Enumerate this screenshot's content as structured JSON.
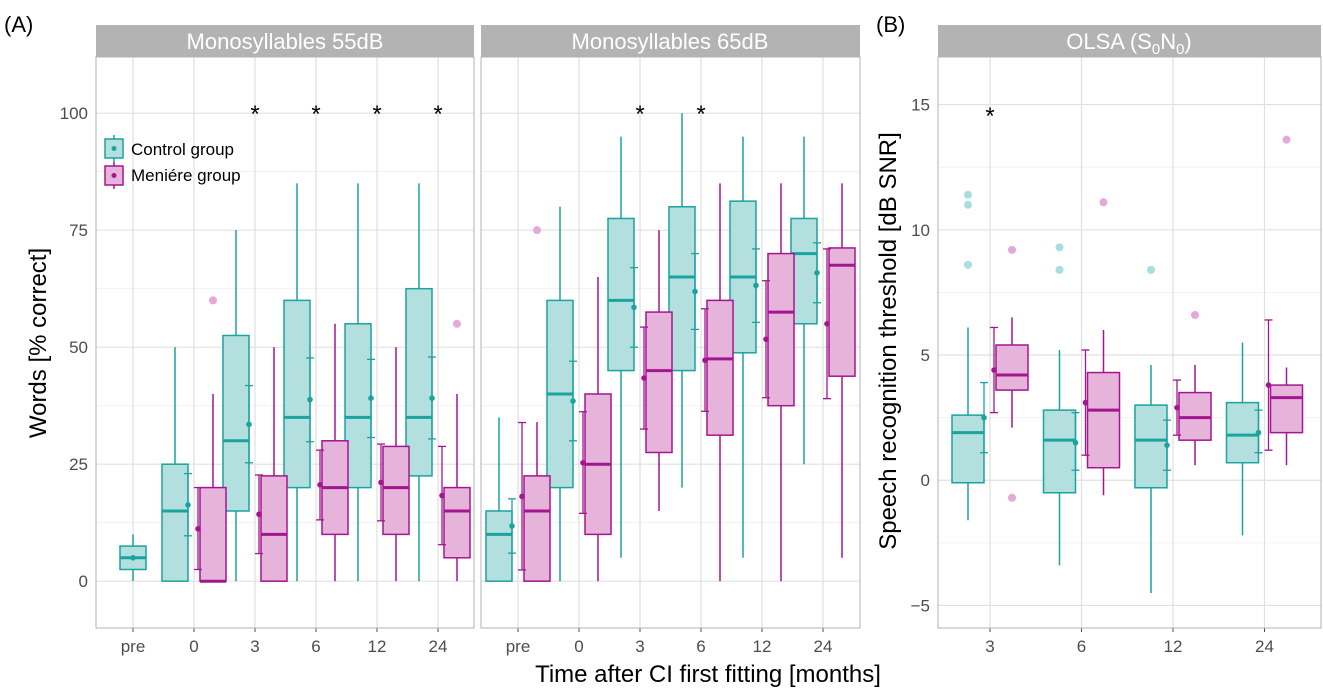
{
  "figure": {
    "panel_a_label": "(A)",
    "panel_b_label": "(B)",
    "shared_xlabel": "Time after CI first fitting [months]"
  },
  "colors": {
    "control": "#1aa39f",
    "control_fill": "#b3e0de",
    "meniere": "#a3168f",
    "meniere_fill": "#e6b3db",
    "strip": "#b3b3b3",
    "grid": "#e0e0e0"
  },
  "legend": {
    "items": [
      "Control group",
      "Meniére group"
    ]
  },
  "chart_data": [
    {
      "type": "box",
      "title": "Monosyllables 55dB",
      "ylabel": "Words [% correct]",
      "xlabel": "Time after CI first fitting [months]",
      "categories": [
        "pre",
        "0",
        "3",
        "6",
        "12",
        "24"
      ],
      "ylim": [
        -10,
        112
      ],
      "yticks": [
        0,
        25,
        50,
        75,
        100
      ],
      "grid": true,
      "legend_position": "top-left",
      "significance": [
        "",
        "",
        "*",
        "*",
        "*",
        "*"
      ],
      "series": [
        {
          "name": "Control group",
          "boxes": [
            {
              "q1": 2.5,
              "median": 5,
              "q3": 7.5,
              "lo": 0,
              "hi": 10,
              "mean": 5,
              "ci": null,
              "outliers": []
            },
            {
              "q1": 0,
              "median": 15,
              "q3": 25,
              "lo": 0,
              "hi": 50,
              "mean": 16.3,
              "ci": [
                9.7,
                23
              ],
              "outliers": []
            },
            {
              "q1": 15,
              "median": 30,
              "q3": 52.5,
              "lo": 0,
              "hi": 75,
              "mean": 33.5,
              "ci": [
                25.3,
                41.8
              ],
              "outliers": []
            },
            {
              "q1": 20,
              "median": 35,
              "q3": 60,
              "lo": 0,
              "hi": 85,
              "mean": 38.8,
              "ci": [
                29.8,
                47.7
              ],
              "outliers": []
            },
            {
              "q1": 20,
              "median": 35,
              "q3": 55,
              "lo": 0,
              "hi": 85,
              "mean": 39.1,
              "ci": [
                30.7,
                47.4
              ],
              "outliers": []
            },
            {
              "q1": 22.5,
              "median": 35,
              "q3": 62.5,
              "lo": 0,
              "hi": 85,
              "mean": 39.1,
              "ci": [
                30.4,
                47.9
              ],
              "outliers": []
            }
          ]
        },
        {
          "name": "Meniére group",
          "boxes": [
            null,
            {
              "q1": 0,
              "median": 0,
              "q3": 20,
              "lo": 0,
              "hi": 40,
              "mean": 11.2,
              "ci": [
                2.5,
                20
              ],
              "outliers": [
                60
              ]
            },
            {
              "q1": 0,
              "median": 10,
              "q3": 22.5,
              "lo": 0,
              "hi": 50,
              "mean": 14.3,
              "ci": [
                5.9,
                22.7
              ],
              "outliers": []
            },
            {
              "q1": 10,
              "median": 20,
              "q3": 30,
              "lo": 0,
              "hi": 55,
              "mean": 20.6,
              "ci": [
                13.1,
                28
              ],
              "outliers": []
            },
            {
              "q1": 10,
              "median": 20,
              "q3": 28.8,
              "lo": 0,
              "hi": 50,
              "mean": 21.1,
              "ci": [
                12.9,
                29.3
              ],
              "outliers": []
            },
            {
              "q1": 5,
              "median": 15,
              "q3": 20,
              "lo": 0,
              "hi": 40,
              "mean": 18.3,
              "ci": [
                7.8,
                28.8
              ],
              "outliers": [
                55
              ]
            }
          ]
        }
      ]
    },
    {
      "type": "box",
      "title": "Monosyllables 65dB",
      "categories": [
        "pre",
        "0",
        "3",
        "6",
        "12",
        "24"
      ],
      "ylim": [
        -10,
        112
      ],
      "grid": true,
      "significance": [
        "",
        "",
        "*",
        "*",
        "",
        ""
      ],
      "series": [
        {
          "name": "Control group",
          "boxes": [
            {
              "q1": 0,
              "median": 10,
              "q3": 15,
              "lo": 0,
              "hi": 35,
              "mean": 11.8,
              "ci": [
                6,
                17.6
              ],
              "outliers": []
            },
            {
              "q1": 20,
              "median": 40,
              "q3": 60,
              "lo": 0,
              "hi": 80,
              "mean": 38.5,
              "ci": [
                30,
                47
              ],
              "outliers": []
            },
            {
              "q1": 45,
              "median": 60,
              "q3": 77.5,
              "lo": 5,
              "hi": 95,
              "mean": 58.5,
              "ci": [
                50,
                67
              ],
              "outliers": []
            },
            {
              "q1": 45,
              "median": 65,
              "q3": 80,
              "lo": 20,
              "hi": 100,
              "mean": 61.9,
              "ci": [
                53.8,
                70
              ],
              "outliers": []
            },
            {
              "q1": 48.8,
              "median": 65,
              "q3": 81.2,
              "lo": 5,
              "hi": 95,
              "mean": 63.2,
              "ci": [
                55.3,
                71
              ],
              "outliers": []
            },
            {
              "q1": 55,
              "median": 70,
              "q3": 77.5,
              "lo": 25,
              "hi": 95,
              "mean": 65.9,
              "ci": [
                59.5,
                72.3
              ],
              "outliers": []
            }
          ]
        },
        {
          "name": "Meniére group",
          "boxes": [
            {
              "q1": 0,
              "median": 15,
              "q3": 22.5,
              "lo": 0,
              "hi": 34,
              "mean": 18.1,
              "ci": [
                2.4,
                33.9
              ],
              "outliers": [
                75
              ]
            },
            {
              "q1": 10,
              "median": 25,
              "q3": 40,
              "lo": 0,
              "hi": 65,
              "mean": 25.3,
              "ci": [
                14.5,
                36.2
              ],
              "outliers": []
            },
            {
              "q1": 27.5,
              "median": 45,
              "q3": 57.5,
              "lo": 15,
              "hi": 75,
              "mean": 43.4,
              "ci": [
                32.5,
                54.3
              ],
              "outliers": []
            },
            {
              "q1": 31.2,
              "median": 47.5,
              "q3": 60,
              "lo": 0,
              "hi": 85,
              "mean": 47.2,
              "ci": [
                36.3,
                58.2
              ],
              "outliers": []
            },
            {
              "q1": 37.5,
              "median": 57.5,
              "q3": 70,
              "lo": 0,
              "hi": 85,
              "mean": 51.7,
              "ci": [
                39.2,
                64.2
              ],
              "outliers": []
            },
            {
              "q1": 43.8,
              "median": 67.5,
              "q3": 71.2,
              "lo": 5,
              "hi": 85,
              "mean": 55,
              "ci": [
                39,
                71
              ],
              "outliers": []
            }
          ]
        }
      ]
    },
    {
      "type": "box",
      "title": "OLSA (S0N0)",
      "title_main": "OLSA (S",
      "title_sub1": "0",
      "title_mid": "N",
      "title_sub2": "0",
      "title_end": ")",
      "ylabel": "Speech recognition threshold [dB SNR]",
      "categories": [
        "3",
        "6",
        "12",
        "24"
      ],
      "ylim": [
        -5.9,
        16.9
      ],
      "yticks": [
        -5,
        0,
        5,
        10,
        15
      ],
      "grid": true,
      "significance": [
        "*",
        "",
        "",
        ""
      ],
      "series": [
        {
          "name": "Control group",
          "boxes": [
            {
              "q1": -0.1,
              "median": 1.9,
              "q3": 2.6,
              "lo": -1.6,
              "hi": 6.1,
              "mean": 2.5,
              "ci": [
                1.1,
                3.9
              ],
              "outliers": [
                8.6,
                11,
                11.4
              ]
            },
            {
              "q1": -0.5,
              "median": 1.6,
              "q3": 2.8,
              "lo": -3.4,
              "hi": 5.2,
              "mean": 1.5,
              "ci": [
                0.4,
                2.7
              ],
              "outliers": [
                8.4,
                9.3
              ]
            },
            {
              "q1": -0.3,
              "median": 1.6,
              "q3": 3.0,
              "lo": -4.5,
              "hi": 4.6,
              "mean": 1.4,
              "ci": [
                0.4,
                2.4
              ],
              "outliers": [
                8.4
              ]
            },
            {
              "q1": 0.7,
              "median": 1.8,
              "q3": 3.1,
              "lo": -2.2,
              "hi": 5.5,
              "mean": 1.9,
              "ci": [
                1.1,
                2.8
              ],
              "outliers": []
            }
          ]
        },
        {
          "name": "Meniére group",
          "boxes": [
            {
              "q1": 3.6,
              "median": 4.2,
              "q3": 5.4,
              "lo": 2.1,
              "hi": 6.5,
              "mean": 4.4,
              "ci": [
                2.7,
                6.1
              ],
              "outliers": [
                9.2,
                -0.7
              ]
            },
            {
              "q1": 0.5,
              "median": 2.8,
              "q3": 4.3,
              "lo": -0.6,
              "hi": 6.0,
              "mean": 3.1,
              "ci": [
                1.0,
                5.2
              ],
              "outliers": [
                11.1
              ]
            },
            {
              "q1": 1.6,
              "median": 2.5,
              "q3": 3.5,
              "lo": 0.6,
              "hi": 4.6,
              "mean": 2.9,
              "ci": [
                1.8,
                4.0
              ],
              "outliers": [
                6.6
              ]
            },
            {
              "q1": 1.9,
              "median": 3.3,
              "q3": 3.8,
              "lo": 0.6,
              "hi": 4.5,
              "mean": 3.8,
              "ci": [
                1.2,
                6.4
              ],
              "outliers": [
                13.6
              ]
            }
          ]
        }
      ]
    }
  ]
}
